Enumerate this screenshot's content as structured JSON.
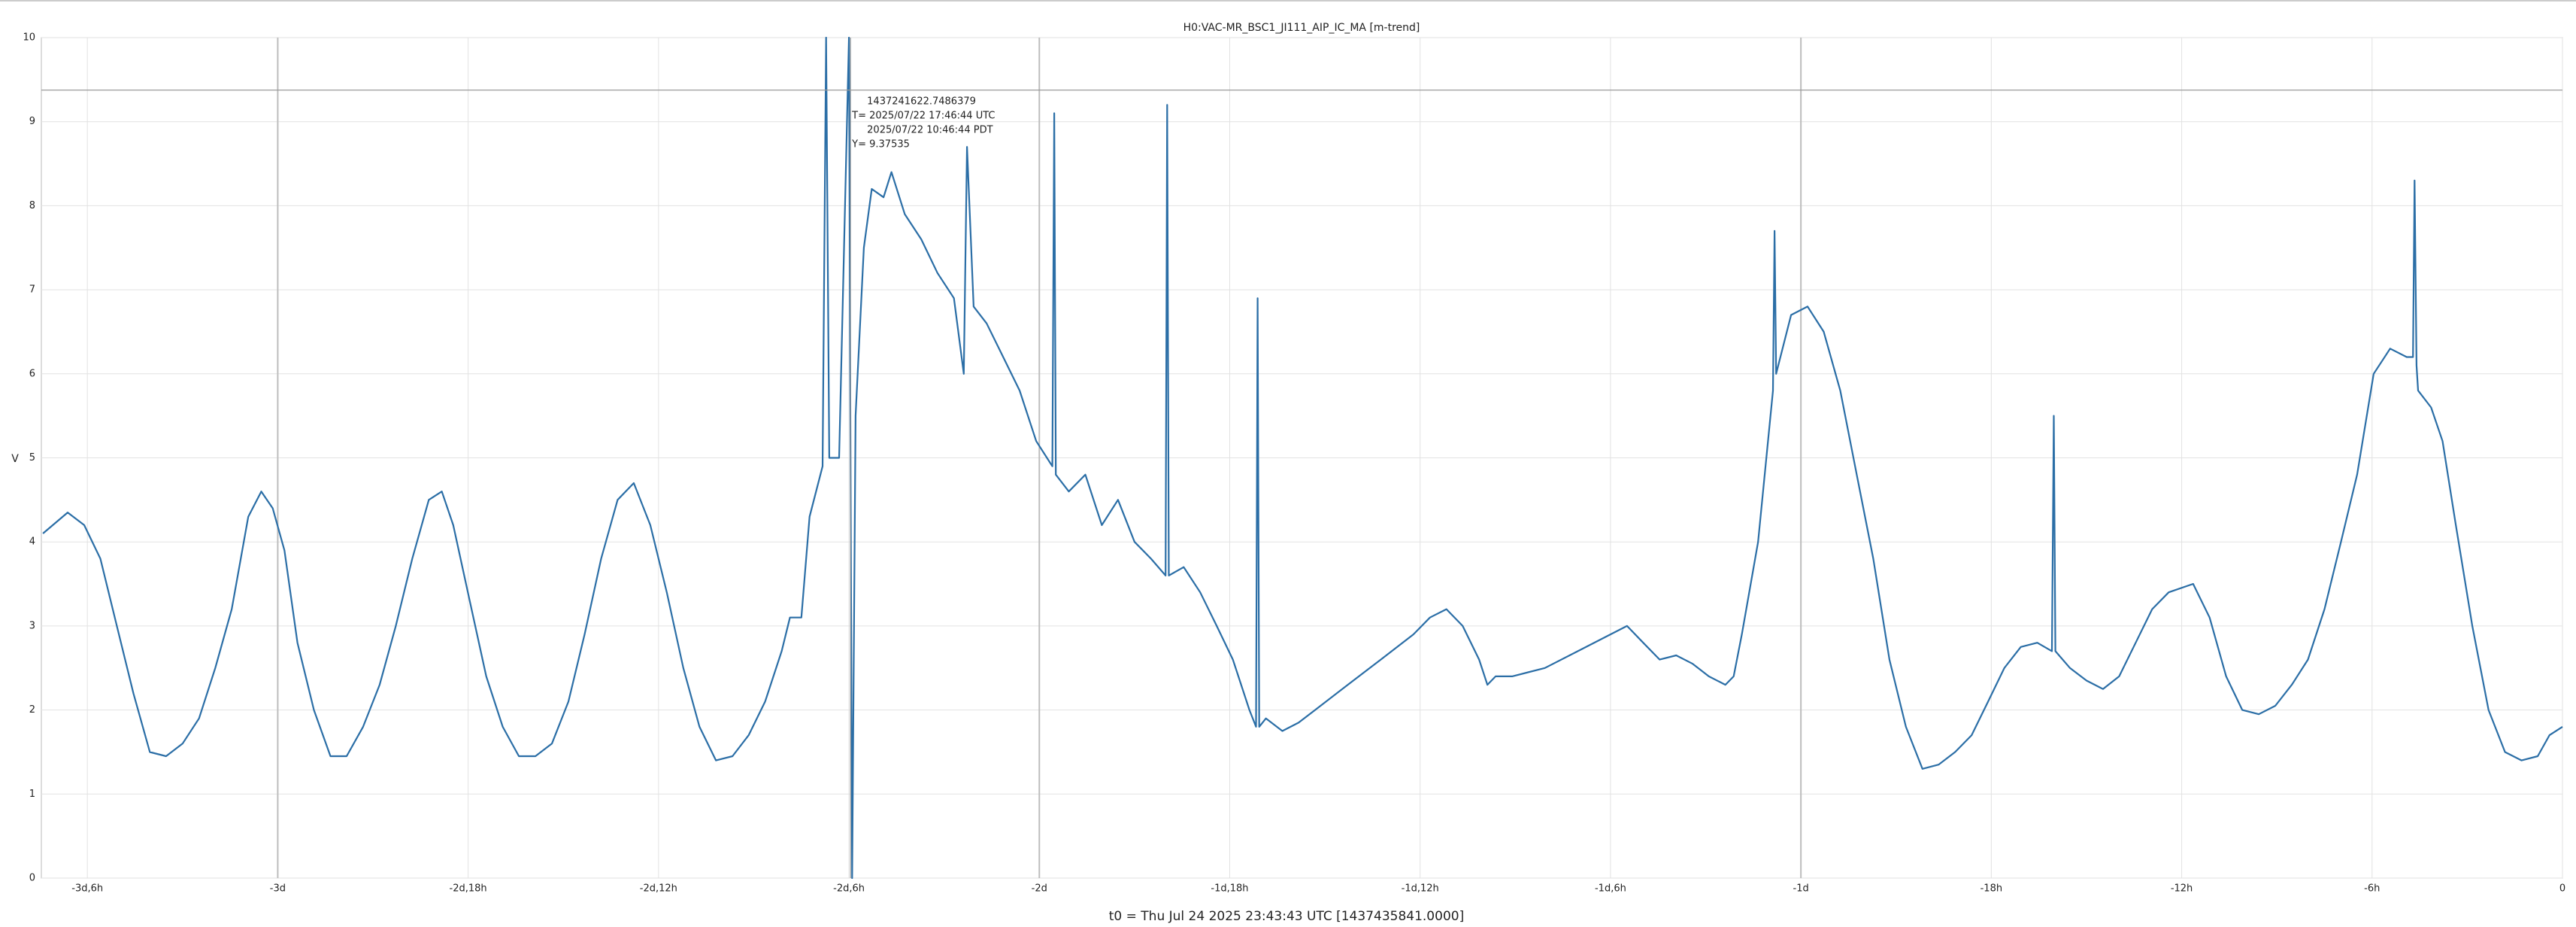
{
  "chart_data": {
    "type": "line",
    "title": "H0:VAC-MR_BSC1_JI111_AIP_IC_MA [m-trend]",
    "xlabel": "t0 = Thu Jul 24 2025 23:43:43 UTC [1437435841.0000]",
    "ylabel": "V",
    "xlim": [
      -79.45,
      0
    ],
    "ylim": [
      0,
      10
    ],
    "yticks": [
      0,
      1,
      2,
      3,
      4,
      5,
      6,
      7,
      8,
      9,
      10
    ],
    "xticks": [
      {
        "value": -78,
        "label": "-3d,6h"
      },
      {
        "value": -72,
        "label": "-3d"
      },
      {
        "value": -66,
        "label": "-2d,18h"
      },
      {
        "value": -60,
        "label": "-2d,12h"
      },
      {
        "value": -54,
        "label": "-2d,6h"
      },
      {
        "value": -48,
        "label": "-2d"
      },
      {
        "value": -42,
        "label": "-1d,18h"
      },
      {
        "value": -36,
        "label": "-1d,12h"
      },
      {
        "value": -30,
        "label": "-1d,6h"
      },
      {
        "value": -24,
        "label": "-1d"
      },
      {
        "value": -18,
        "label": "-18h"
      },
      {
        "value": -12,
        "label": "-12h"
      },
      {
        "value": -6,
        "label": "-6h"
      },
      0
    ],
    "grid": true,
    "annotation": {
      "x": -53.95,
      "y": 9.37535,
      "lines": [
        "1437241622.7486379",
        "T= 2025/07/22 17:46:44 UTC",
        "2025/07/22 10:46:44 PDT",
        "Y= 9.37535"
      ]
    },
    "x": [
      -79.4,
      -78.62,
      -78.1,
      -77.59,
      -77.07,
      -76.55,
      -76.03,
      -75.52,
      -75.0,
      -74.48,
      -73.97,
      -73.45,
      -72.93,
      -72.52,
      -72.16,
      -71.79,
      -71.38,
      -70.86,
      -70.34,
      -69.83,
      -69.31,
      -68.79,
      -68.28,
      -67.76,
      -67.24,
      -66.83,
      -66.47,
      -65.95,
      -65.43,
      -64.91,
      -64.4,
      -63.88,
      -63.36,
      -62.84,
      -62.33,
      -61.81,
      -61.29,
      -60.78,
      -60.26,
      -59.74,
      -59.22,
      -58.71,
      -58.19,
      -57.67,
      -57.16,
      -56.64,
      -56.12,
      -55.86,
      -55.5,
      -55.24,
      -54.83,
      -54.72,
      -54.62,
      -54.31,
      -54.0,
      -53.9,
      -53.79,
      -53.53,
      -53.28,
      -52.91,
      -52.66,
      -52.24,
      -51.72,
      -51.21,
      -50.69,
      -50.38,
      -50.28,
      -50.07,
      -49.66,
      -49.14,
      -48.62,
      -48.1,
      -47.59,
      -47.53,
      -47.48,
      -47.07,
      -46.55,
      -46.03,
      -45.52,
      -45.0,
      -44.48,
      -44.02,
      -43.97,
      -43.92,
      -43.45,
      -42.93,
      -42.41,
      -41.9,
      -41.38,
      -41.17,
      -41.12,
      -41.07,
      -40.86,
      -40.34,
      -39.83,
      -39.31,
      -38.28,
      -37.24,
      -36.21,
      -35.69,
      -35.17,
      -34.66,
      -34.14,
      -33.88,
      -33.62,
      -33.1,
      -32.07,
      -31.03,
      -30.0,
      -29.48,
      -28.97,
      -28.45,
      -27.93,
      -27.41,
      -26.9,
      -26.38,
      -26.12,
      -25.86,
      -25.35,
      -24.88,
      -24.83,
      -24.78,
      -24.31,
      -23.79,
      -23.28,
      -22.76,
      -22.24,
      -21.72,
      -21.21,
      -20.69,
      -20.17,
      -19.66,
      -19.14,
      -18.62,
      -18.1,
      -17.59,
      -17.07,
      -16.55,
      -16.09,
      -16.03,
      -15.98,
      -15.52,
      -15.0,
      -14.48,
      -13.97,
      -13.45,
      -12.93,
      -12.41,
      -11.64,
      -11.12,
      -10.6,
      -10.09,
      -9.57,
      -9.05,
      -8.53,
      -8.02,
      -7.5,
      -6.98,
      -6.47,
      -5.95,
      -5.43,
      -4.91,
      -4.71,
      -4.66,
      -4.6,
      -4.55,
      -4.14,
      -3.78,
      -3.36,
      -2.84,
      -2.33,
      -1.81,
      -1.29,
      -0.78,
      -0.41,
      0
    ],
    "series": [
      {
        "color": "#2b6ea6",
        "values": [
          4.1,
          4.35,
          4.2,
          3.8,
          3.0,
          2.2,
          1.5,
          1.45,
          1.6,
          1.9,
          2.5,
          3.2,
          4.3,
          4.6,
          4.4,
          3.9,
          2.8,
          2.0,
          1.45,
          1.45,
          1.8,
          2.3,
          3.0,
          3.8,
          4.5,
          4.6,
          4.2,
          3.3,
          2.4,
          1.8,
          1.45,
          1.45,
          1.6,
          2.1,
          2.9,
          3.8,
          4.5,
          4.7,
          4.2,
          3.4,
          2.5,
          1.8,
          1.4,
          1.45,
          1.7,
          2.1,
          2.7,
          3.1,
          3.1,
          4.3,
          4.9,
          10,
          5,
          5,
          10,
          0,
          5.5,
          7.5,
          8.2,
          8.1,
          8.4,
          7.9,
          7.6,
          7.2,
          6.9,
          6.0,
          8.7,
          6.8,
          6.6,
          6.2,
          5.8,
          5.2,
          4.9,
          9.1,
          4.8,
          4.6,
          4.8,
          4.2,
          4.5,
          4.0,
          3.8,
          3.6,
          9.2,
          3.6,
          3.7,
          3.4,
          3.0,
          2.6,
          2.0,
          1.8,
          6.9,
          1.8,
          1.9,
          1.75,
          1.85,
          2.0,
          2.3,
          2.6,
          2.9,
          3.1,
          3.2,
          3.0,
          2.6,
          2.3,
          2.4,
          2.4,
          2.5,
          2.7,
          2.9,
          3.0,
          2.8,
          2.6,
          2.65,
          2.55,
          2.4,
          2.3,
          2.4,
          2.9,
          4.0,
          5.8,
          7.7,
          6.0,
          6.7,
          6.8,
          6.5,
          5.8,
          4.8,
          3.8,
          2.6,
          1.8,
          1.3,
          1.35,
          1.5,
          1.7,
          2.1,
          2.5,
          2.75,
          2.8,
          2.7,
          5.5,
          2.7,
          2.5,
          2.35,
          2.25,
          2.4,
          2.8,
          3.2,
          3.4,
          3.5,
          3.1,
          2.4,
          2.0,
          1.95,
          2.05,
          2.3,
          2.6,
          3.2,
          4.0,
          4.8,
          6.0,
          6.3,
          6.2,
          6.2,
          8.3,
          6.1,
          5.8,
          5.6,
          5.2,
          4.2,
          3.0,
          2.0,
          1.5,
          1.4,
          1.45,
          1.7,
          1.8
        ]
      }
    ]
  }
}
